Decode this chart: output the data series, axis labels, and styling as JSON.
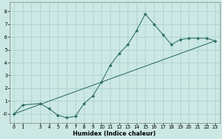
{
  "xlabel": "Humidex (Indice chaleur)",
  "background_color": "#cce8e4",
  "grid_color": "#aacfcc",
  "line_color": "#2d6e68",
  "x_ticks": [
    0,
    1,
    3,
    4,
    5,
    6,
    7,
    8,
    9,
    10,
    11,
    12,
    13,
    14,
    15,
    16,
    17,
    18,
    19,
    20,
    21,
    22,
    23
  ],
  "y_ticks": [
    0,
    1,
    2,
    3,
    4,
    5,
    6,
    7,
    8
  ],
  "xlim": [
    -0.5,
    23.5
  ],
  "ylim": [
    -0.7,
    8.7
  ],
  "grid_x": [
    0,
    1,
    2,
    3,
    4,
    5,
    6,
    7,
    8,
    9,
    10,
    11,
    12,
    13,
    14,
    15,
    16,
    17,
    18,
    19,
    20,
    21,
    22,
    23
  ],
  "grid_y": [
    0,
    1,
    2,
    3,
    4,
    5,
    6,
    7,
    8
  ],
  "line1_x": [
    0,
    1,
    3,
    4,
    5,
    6,
    7,
    8,
    9,
    10,
    11,
    12,
    13,
    14,
    15,
    16,
    17,
    18,
    19,
    20,
    21,
    22,
    23
  ],
  "line1_y": [
    0.0,
    0.7,
    0.8,
    0.4,
    -0.1,
    -0.3,
    -0.2,
    0.8,
    1.4,
    2.5,
    3.8,
    4.7,
    5.4,
    6.5,
    7.8,
    7.0,
    6.2,
    5.4,
    5.8,
    5.9,
    5.9,
    5.9,
    5.7
  ],
  "line2_x": [
    0,
    23
  ],
  "line2_y": [
    0.0,
    5.7
  ],
  "tick_fontsize": 5.0,
  "xlabel_fontsize": 6.0
}
